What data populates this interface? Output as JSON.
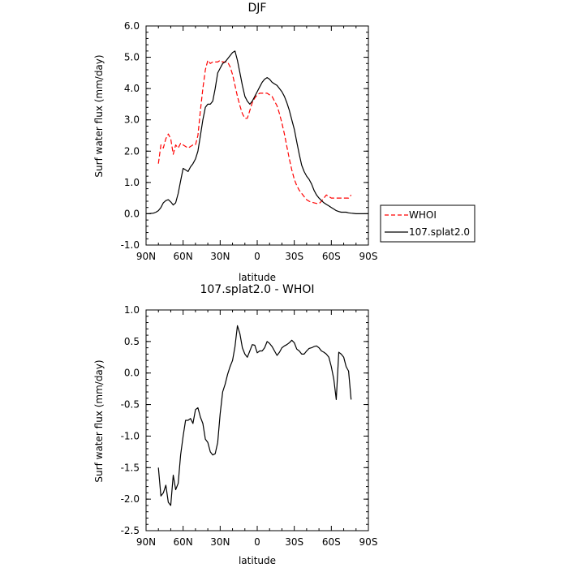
{
  "chart_data": [
    {
      "type": "line",
      "title": "DJF",
      "xlabel": "latitude",
      "ylabel": "Surf water flux (mm/day)",
      "xlim": [
        -90,
        90
      ],
      "ylim": [
        -1.0,
        6.0
      ],
      "x_ticks": [
        -90,
        -60,
        -30,
        0,
        30,
        60,
        90
      ],
      "x_tick_labels": [
        "90N",
        "60N",
        "30N",
        "0",
        "30S",
        "60S",
        "90S"
      ],
      "y_ticks": [
        -1,
        0,
        1,
        2,
        3,
        4,
        5,
        6
      ],
      "y_tick_labels": [
        "-1.0",
        "0.0",
        "1.0",
        "2.0",
        "3.0",
        "4.0",
        "5.0",
        "6.0"
      ],
      "grid": false,
      "legend": "right",
      "series": [
        {
          "name": "WHOI",
          "color": "#ff0000",
          "dash": "dashed",
          "x": [
            -80,
            -78,
            -76,
            -74,
            -72,
            -70,
            -68,
            -66,
            -64,
            -62,
            -60,
            -58,
            -56,
            -54,
            -52,
            -50,
            -48,
            -46,
            -44,
            -42,
            -40,
            -38,
            -36,
            -34,
            -32,
            -30,
            -28,
            -26,
            -24,
            -22,
            -20,
            -18,
            -16,
            -14,
            -12,
            -10,
            -8,
            -6,
            -4,
            -2,
            0,
            2,
            4,
            6,
            8,
            10,
            12,
            14,
            16,
            18,
            20,
            22,
            24,
            26,
            28,
            30,
            32,
            34,
            36,
            38,
            40,
            42,
            44,
            46,
            48,
            50,
            52,
            54,
            56,
            58,
            60,
            62,
            64,
            66,
            68,
            70,
            72,
            74,
            76
          ],
          "values": [
            1.6,
            2.2,
            2.1,
            2.4,
            2.55,
            2.4,
            1.9,
            2.2,
            2.1,
            2.25,
            2.2,
            2.15,
            2.1,
            2.15,
            2.2,
            2.2,
            2.5,
            3.3,
            4.0,
            4.6,
            4.9,
            4.8,
            4.85,
            4.85,
            4.85,
            4.9,
            4.85,
            4.85,
            4.85,
            4.7,
            4.45,
            4.1,
            3.75,
            3.45,
            3.2,
            3.05,
            3.05,
            3.3,
            3.55,
            3.7,
            3.8,
            3.85,
            3.85,
            3.85,
            3.85,
            3.8,
            3.75,
            3.6,
            3.45,
            3.2,
            2.9,
            2.55,
            2.15,
            1.75,
            1.4,
            1.1,
            0.9,
            0.75,
            0.65,
            0.55,
            0.45,
            0.4,
            0.37,
            0.35,
            0.33,
            0.32,
            0.4,
            0.5,
            0.6,
            0.55,
            0.5,
            0.5,
            0.5,
            0.5,
            0.5,
            0.5,
            0.5,
            0.5,
            0.6
          ]
        },
        {
          "name": "107.splat2.0",
          "color": "#000000",
          "dash": "solid",
          "x": [
            -90,
            -88,
            -86,
            -84,
            -82,
            -80,
            -78,
            -76,
            -74,
            -72,
            -70,
            -68,
            -66,
            -64,
            -62,
            -60,
            -58,
            -56,
            -54,
            -52,
            -50,
            -48,
            -46,
            -44,
            -42,
            -40,
            -38,
            -36,
            -34,
            -32,
            -30,
            -28,
            -26,
            -24,
            -22,
            -20,
            -18,
            -16,
            -14,
            -12,
            -10,
            -8,
            -6,
            -4,
            -2,
            0,
            2,
            4,
            6,
            8,
            10,
            12,
            14,
            16,
            18,
            20,
            22,
            24,
            26,
            28,
            30,
            32,
            34,
            36,
            38,
            40,
            42,
            44,
            46,
            48,
            50,
            52,
            54,
            56,
            58,
            60,
            62,
            64,
            66,
            68,
            70,
            72,
            74,
            76,
            78,
            80,
            82,
            84,
            86,
            88,
            90
          ],
          "values": [
            0.0,
            0.0,
            0.01,
            0.02,
            0.05,
            0.1,
            0.2,
            0.35,
            0.42,
            0.45,
            0.38,
            0.28,
            0.35,
            0.65,
            1.05,
            1.45,
            1.4,
            1.35,
            1.5,
            1.6,
            1.75,
            2.0,
            2.5,
            3.0,
            3.4,
            3.5,
            3.5,
            3.6,
            4.0,
            4.5,
            4.65,
            4.8,
            4.85,
            4.95,
            5.05,
            5.15,
            5.2,
            4.9,
            4.5,
            4.1,
            3.75,
            3.6,
            3.5,
            3.6,
            3.75,
            3.9,
            4.05,
            4.2,
            4.3,
            4.35,
            4.3,
            4.2,
            4.15,
            4.1,
            4.0,
            3.9,
            3.75,
            3.55,
            3.3,
            3.0,
            2.7,
            2.3,
            1.9,
            1.55,
            1.35,
            1.2,
            1.1,
            0.95,
            0.75,
            0.6,
            0.5,
            0.42,
            0.35,
            0.3,
            0.25,
            0.2,
            0.15,
            0.1,
            0.07,
            0.05,
            0.05,
            0.05,
            0.03,
            0.02,
            0.01,
            0.0,
            0.0,
            0.0,
            0.0,
            0.0,
            0.0
          ]
        }
      ]
    },
    {
      "type": "line",
      "title": "107.splat2.0 - WHOI",
      "xlabel": "latitude",
      "ylabel": "Surf water flux (mm/day)",
      "xlim": [
        -90,
        90
      ],
      "ylim": [
        -2.5,
        1.0
      ],
      "x_ticks": [
        -90,
        -60,
        -30,
        0,
        30,
        60,
        90
      ],
      "x_tick_labels": [
        "90N",
        "60N",
        "30N",
        "0",
        "30S",
        "60S",
        "90S"
      ],
      "y_ticks": [
        -2.5,
        -2.0,
        -1.5,
        -1.0,
        -0.5,
        0.0,
        0.5,
        1.0
      ],
      "y_tick_labels": [
        "-2.5",
        "-2.0",
        "-1.5",
        "-1.0",
        "-0.5",
        "0.0",
        "0.5",
        "1.0"
      ],
      "grid": false,
      "series": [
        {
          "color": "#000000",
          "dash": "solid",
          "x": [
            -80,
            -78,
            -76,
            -74,
            -72,
            -70,
            -68,
            -66,
            -64,
            -62,
            -60,
            -58,
            -56,
            -54,
            -52,
            -50,
            -48,
            -46,
            -44,
            -42,
            -40,
            -38,
            -36,
            -34,
            -32,
            -30,
            -28,
            -26,
            -24,
            -22,
            -20,
            -18,
            -16,
            -14,
            -12,
            -10,
            -8,
            -6,
            -4,
            -2,
            0,
            2,
            4,
            6,
            8,
            10,
            12,
            14,
            16,
            18,
            20,
            22,
            24,
            26,
            28,
            30,
            32,
            34,
            36,
            38,
            40,
            42,
            44,
            46,
            48,
            50,
            52,
            54,
            56,
            58,
            60,
            62,
            64,
            66,
            68,
            70,
            72,
            74,
            76
          ],
          "values": [
            -1.5,
            -1.95,
            -1.9,
            -1.78,
            -2.05,
            -2.1,
            -1.62,
            -1.85,
            -1.75,
            -1.3,
            -1.0,
            -0.75,
            -0.75,
            -0.72,
            -0.8,
            -0.58,
            -0.55,
            -0.7,
            -0.8,
            -1.05,
            -1.1,
            -1.25,
            -1.3,
            -1.28,
            -1.1,
            -0.65,
            -0.3,
            -0.18,
            -0.02,
            0.1,
            0.2,
            0.42,
            0.75,
            0.62,
            0.4,
            0.3,
            0.25,
            0.35,
            0.45,
            0.44,
            0.32,
            0.35,
            0.35,
            0.4,
            0.5,
            0.47,
            0.42,
            0.35,
            0.28,
            0.33,
            0.4,
            0.43,
            0.45,
            0.48,
            0.52,
            0.48,
            0.38,
            0.35,
            0.3,
            0.3,
            0.35,
            0.39,
            0.4,
            0.42,
            0.43,
            0.4,
            0.35,
            0.33,
            0.3,
            0.25,
            0.1,
            -0.1,
            -0.42,
            0.33,
            0.3,
            0.25,
            0.1,
            0.03,
            -0.42
          ]
        }
      ]
    }
  ]
}
